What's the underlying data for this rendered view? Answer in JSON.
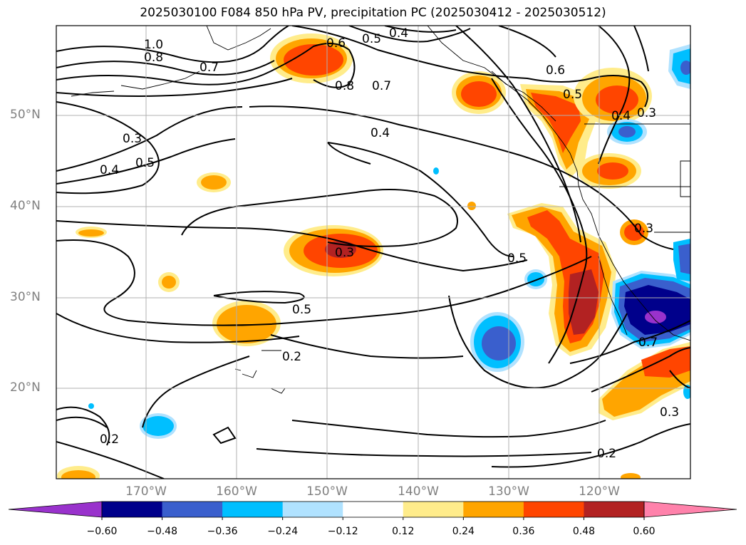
{
  "title": "2025030100 F084 850 hPa PV, precipitation PC (2025030412 - 2025030512)",
  "latitude_labels": [
    "50°N",
    "40°N",
    "30°N",
    "20°N"
  ],
  "longitude_labels": [
    "170°W",
    "160°W",
    "150°W",
    "140°W",
    "130°W",
    "120°W"
  ],
  "contour_labels": [
    "1.0",
    "0.8",
    "0.7",
    "0.6",
    "0.5",
    "0.4",
    "0.8",
    "0.7",
    "0.6",
    "0.5",
    "0.4",
    "0.3",
    "0.3",
    "0.4",
    "0.5",
    "0.4",
    "0.3",
    "0.5",
    "0.5",
    "0.2",
    "0.3",
    "0.7",
    "0.3",
    "0.2",
    "0.2"
  ],
  "colorbar": {
    "ticks": [
      "−0.60",
      "−0.48",
      "−0.36",
      "−0.24",
      "−0.12",
      "0.12",
      "0.24",
      "0.36",
      "0.48",
      "0.60"
    ],
    "colors": [
      "#9932cc",
      "#00008b",
      "#3a5fcd",
      "#00bfff",
      "#b0e2ff",
      "#ffffff",
      "#ffec8b",
      "#ffa500",
      "#ff4500",
      "#b22222",
      "#ff82ab"
    ],
    "extend": "both"
  },
  "style": {
    "grid_color": "#b0b0b0",
    "label_color": "#808080",
    "contour_color": "#000000"
  }
}
